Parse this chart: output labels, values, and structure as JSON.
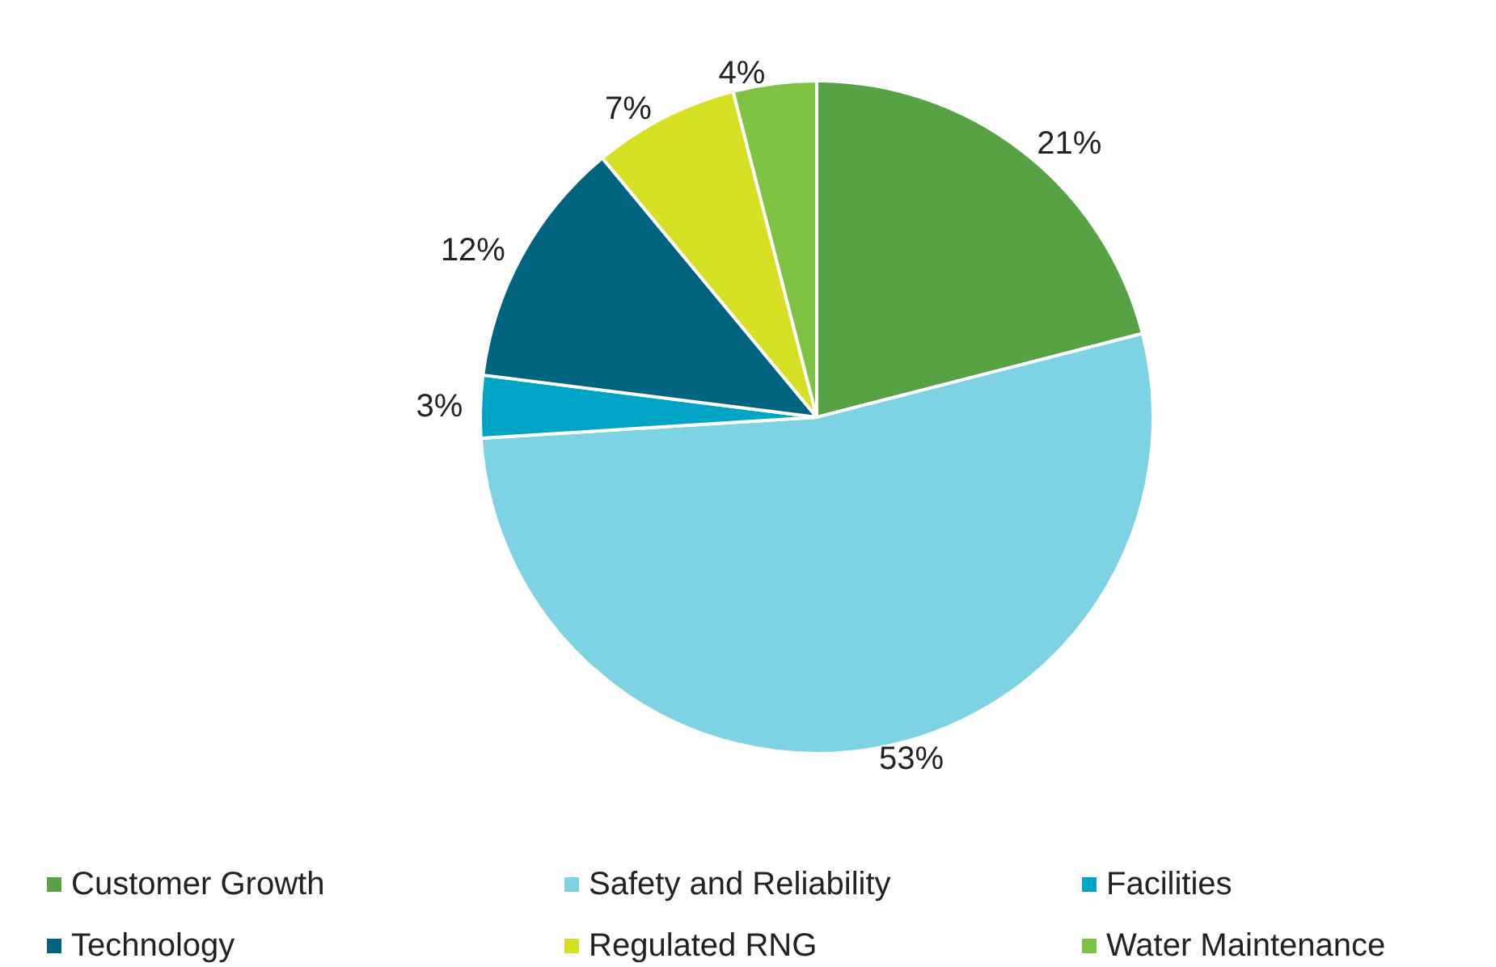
{
  "chart_data": {
    "type": "pie",
    "categories": [
      "Customer Growth",
      "Safety and Reliability",
      "Facilities",
      "Technology",
      "Regulated RNG",
      "Water Maintenance"
    ],
    "values": [
      21,
      53,
      3,
      12,
      7,
      4
    ],
    "colors": [
      "#56a244",
      "#7dd3e4",
      "#00a5c6",
      "#006480",
      "#d7df23",
      "#7dc242"
    ],
    "value_labels": [
      "21%",
      "53%",
      "3%",
      "12%",
      "7%",
      "4%"
    ],
    "legend": "bottom"
  }
}
